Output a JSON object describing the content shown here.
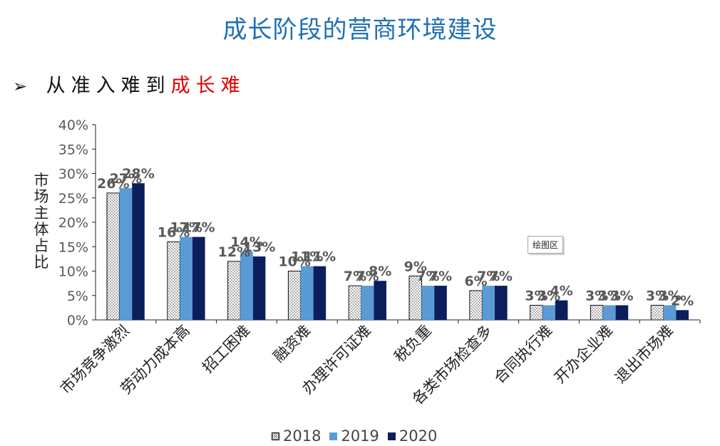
{
  "slide": {
    "title": "成长阶段的营商环境建设",
    "bullet": "➢",
    "subtitle_prefix": "从准入难到",
    "subtitle_highlight": "成长难",
    "plot_area_tag": "绘图区"
  },
  "colors": {
    "title": "#1f6fb4",
    "highlight": "#e00000",
    "series_2018": "#ffffff",
    "series_2019": "#5b9bd5",
    "series_2020": "#0c1f5c",
    "label": "#595959"
  },
  "chart_data": {
    "type": "bar",
    "title": "",
    "xlabel": "",
    "ylabel": "市场主体占比",
    "ylim": [
      0,
      40
    ],
    "yticks": [
      "0%",
      "5%",
      "10%",
      "15%",
      "20%",
      "25%",
      "30%",
      "35%",
      "40%"
    ],
    "categories": [
      "市场竞争激烈",
      "劳动力成本高",
      "招工困难",
      "融资难",
      "办理许可证难",
      "税负重",
      "各类市场检查多",
      "合同执行难",
      "开办企业难",
      "退出市场难"
    ],
    "series": [
      {
        "name": "2018",
        "values": [
          26,
          16,
          12,
          10,
          7,
          9,
          6,
          3,
          3,
          3
        ]
      },
      {
        "name": "2019",
        "values": [
          27,
          17,
          14,
          11,
          7,
          7,
          7,
          3,
          3,
          3
        ]
      },
      {
        "name": "2020",
        "values": [
          28,
          17,
          13,
          11,
          8,
          7,
          7,
          4,
          3,
          2
        ]
      }
    ],
    "legend_position": "bottom",
    "grid": false
  }
}
